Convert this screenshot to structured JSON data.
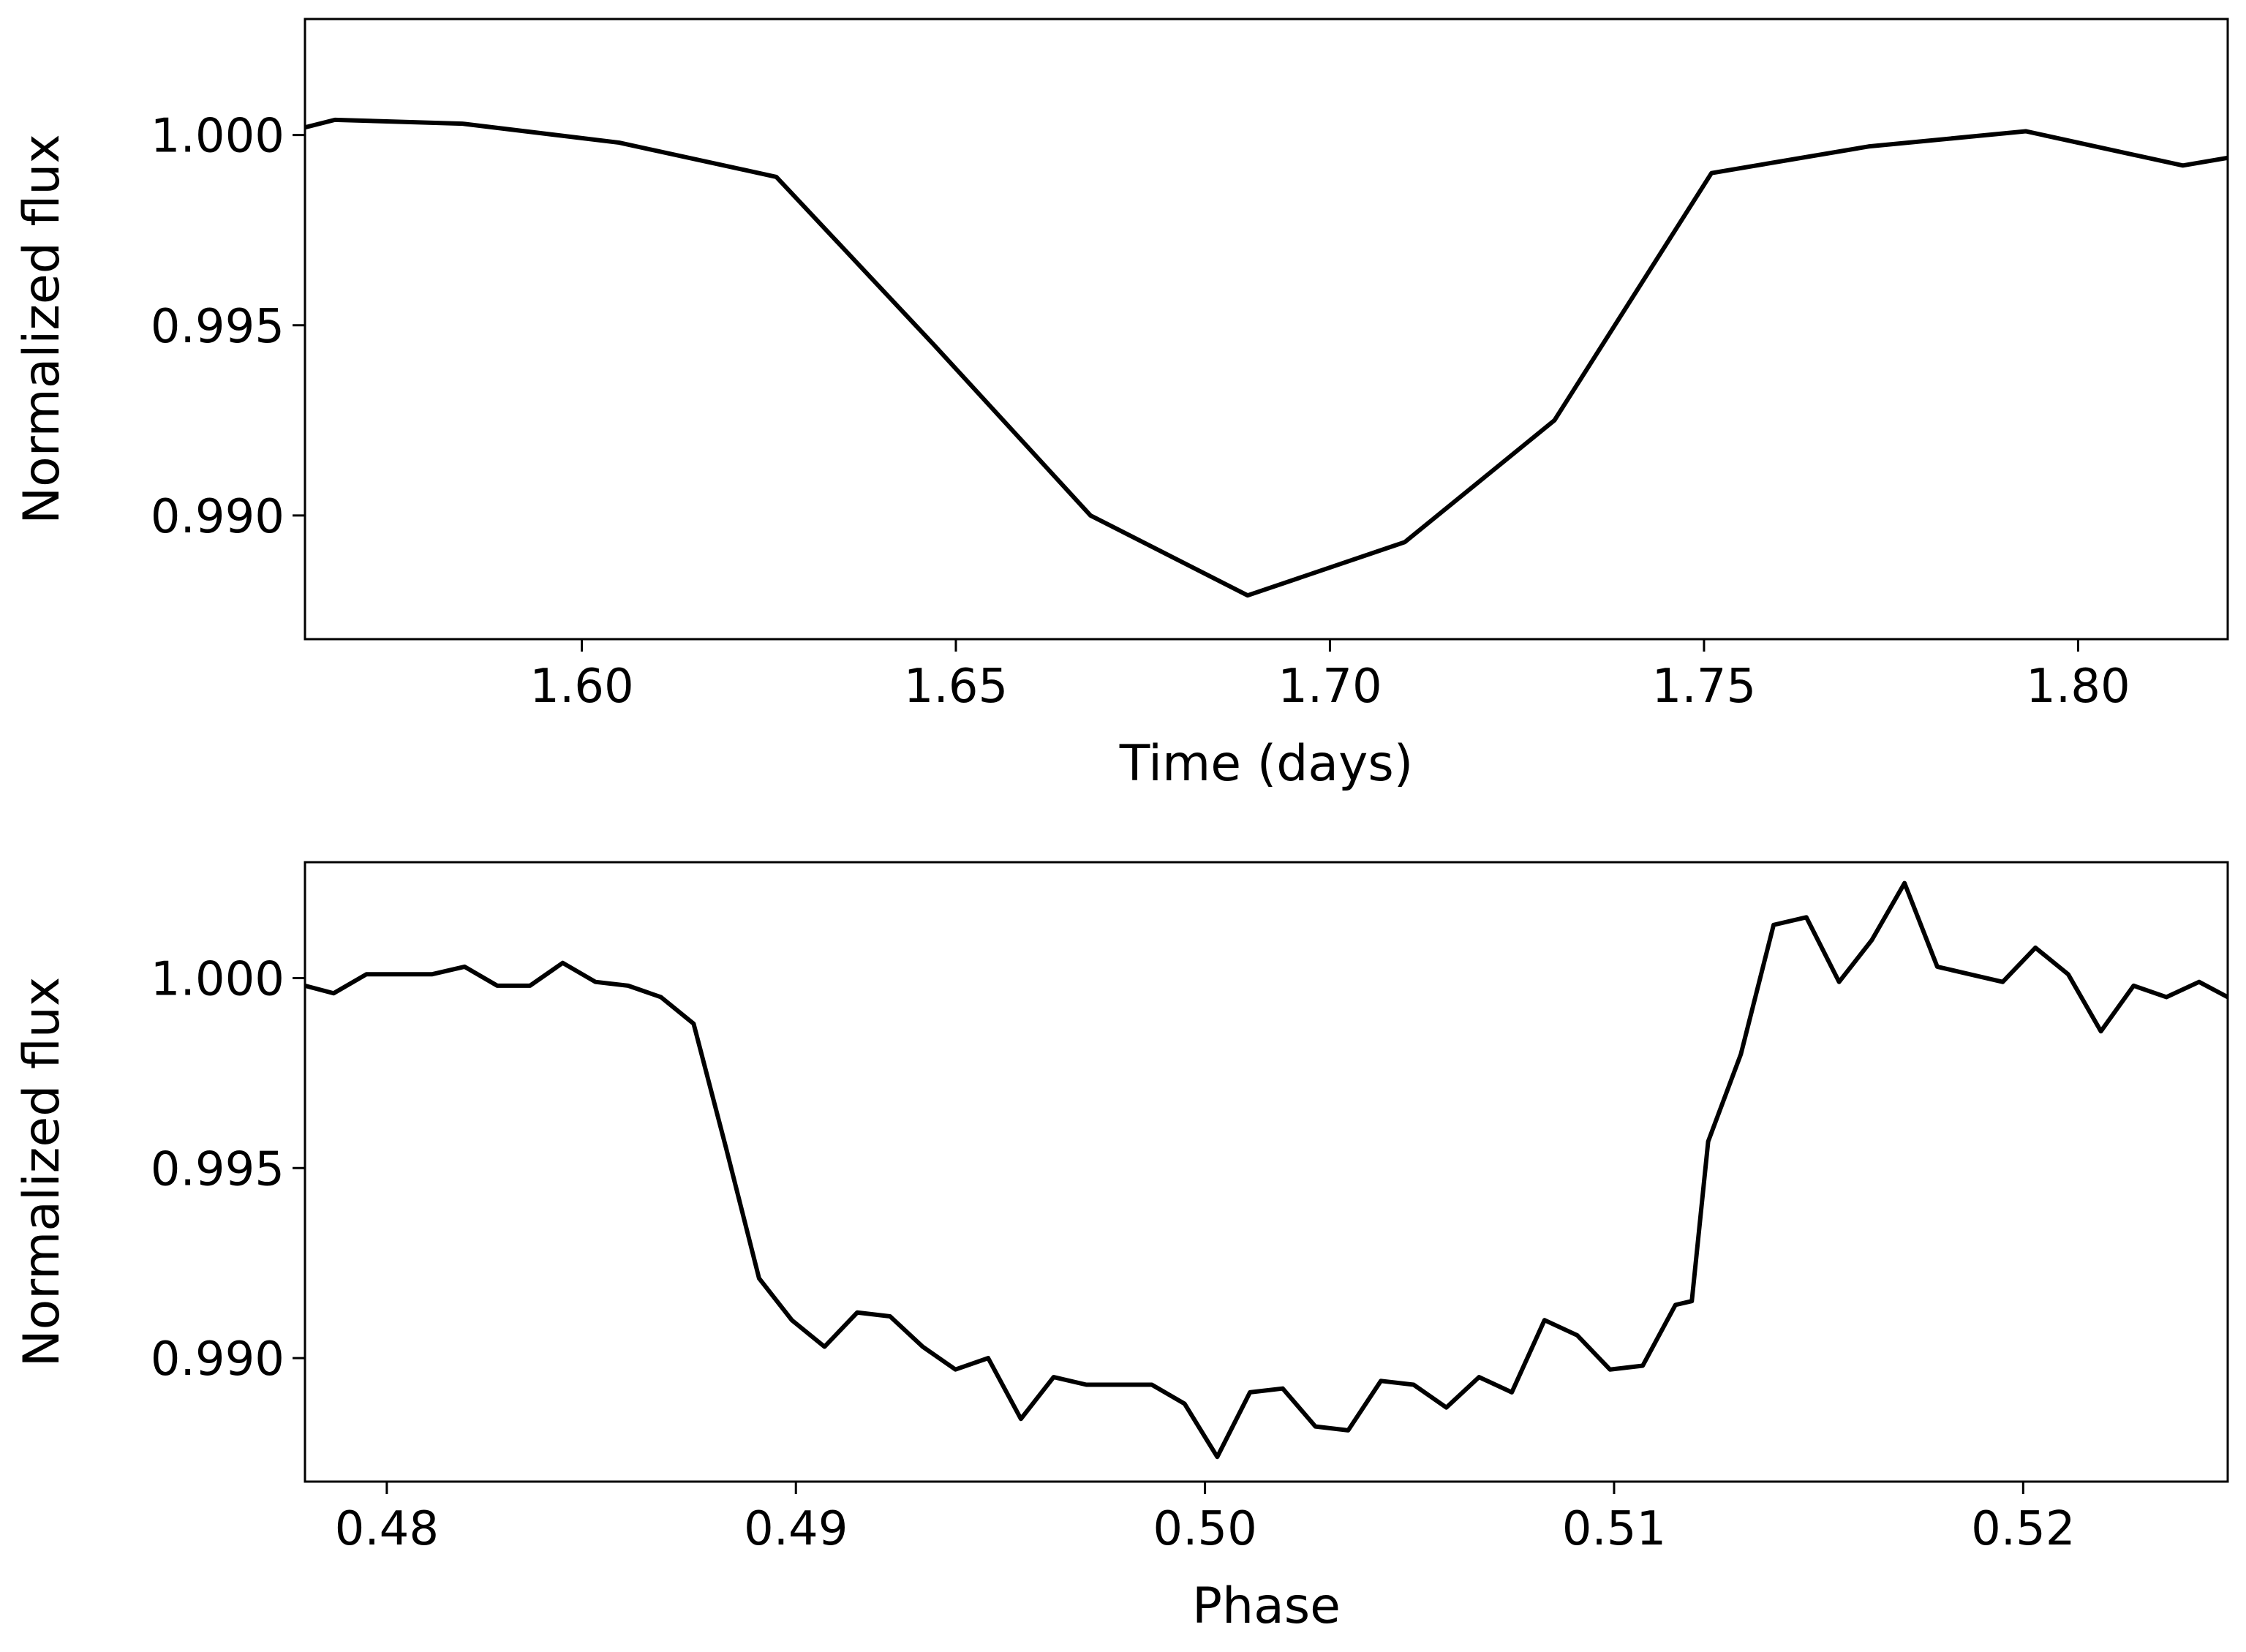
{
  "chart_data": [
    {
      "type": "line",
      "xlabel": "Time (days)",
      "ylabel": "Normalized flux",
      "xlim": [
        1.563,
        1.82
      ],
      "ylim": [
        0.98675,
        1.00305
      ],
      "x_ticks": [
        1.6,
        1.65,
        1.7,
        1.75,
        1.8
      ],
      "x_tick_labels": [
        "1.60",
        "1.65",
        "1.70",
        "1.75",
        "1.80"
      ],
      "y_ticks": [
        0.99,
        0.995,
        1.0
      ],
      "y_tick_labels": [
        "0.990",
        "0.995",
        "1.000"
      ],
      "grid": false,
      "line_color": "#000000",
      "series": [
        {
          "x": [
            1.563,
            1.567,
            1.584,
            1.605,
            1.626,
            1.647,
            1.668,
            1.689,
            1.71,
            1.73,
            1.751,
            1.772,
            1.793,
            1.814,
            1.82
          ],
          "y": [
            1.0002,
            1.0004,
            1.0003,
            0.9998,
            0.9989,
            0.9945,
            0.99,
            0.9879,
            0.9893,
            0.9925,
            0.999,
            0.9997,
            1.0001,
            0.9992,
            0.9994
          ]
        }
      ]
    },
    {
      "type": "line",
      "xlabel": "Phase",
      "ylabel": "Normalized flux",
      "xlim": [
        0.478,
        0.525
      ],
      "ylim": [
        0.98675,
        1.00305
      ],
      "x_ticks": [
        0.48,
        0.49,
        0.5,
        0.51,
        0.52
      ],
      "x_tick_labels": [
        "0.48",
        "0.49",
        "0.50",
        "0.51",
        "0.52"
      ],
      "y_ticks": [
        0.99,
        0.995,
        1.0
      ],
      "y_tick_labels": [
        "0.990",
        "0.995",
        "1.000"
      ],
      "grid": false,
      "line_color": "#000000",
      "series": [
        {
          "x": [
            0.478,
            0.4787,
            0.4795,
            0.4803,
            0.4811,
            0.4819,
            0.4827,
            0.4835,
            0.4843,
            0.4851,
            0.4859,
            0.4867,
            0.4875,
            0.4883,
            0.4891,
            0.4899,
            0.4907,
            0.4915,
            0.4923,
            0.4931,
            0.4939,
            0.4947,
            0.4955,
            0.4963,
            0.4971,
            0.4979,
            0.4987,
            0.4995,
            0.5003,
            0.5011,
            0.5019,
            0.5027,
            0.5035,
            0.5043,
            0.5051,
            0.5059,
            0.5067,
            0.5075,
            0.5083,
            0.5091,
            0.5099,
            0.5107,
            0.5115,
            0.5119,
            0.5123,
            0.5131,
            0.5139,
            0.5147,
            0.5155,
            0.5163,
            0.5171,
            0.5179,
            0.5187,
            0.5195,
            0.5203,
            0.5211,
            0.5219,
            0.5227,
            0.5235,
            0.5243,
            0.525
          ],
          "y": [
            0.9998,
            0.9996,
            1.0001,
            1.0001,
            1.0001,
            1.0003,
            0.9998,
            0.9998,
            1.0004,
            0.9999,
            0.9998,
            0.9995,
            0.9988,
            0.9955,
            0.9921,
            0.991,
            0.9903,
            0.9912,
            0.9911,
            0.9903,
            0.9897,
            0.99,
            0.9884,
            0.9895,
            0.9893,
            0.9893,
            0.9893,
            0.9888,
            0.9874,
            0.9891,
            0.9892,
            0.9882,
            0.9881,
            0.9894,
            0.9893,
            0.9887,
            0.9895,
            0.9891,
            0.991,
            0.9906,
            0.9897,
            0.9898,
            0.9914,
            0.9915,
            0.9957,
            0.998,
            1.0014,
            1.0016,
            0.9999,
            1.001,
            1.0025,
            1.0003,
            1.0001,
            0.9999,
            1.0008,
            1.0001,
            0.9986,
            0.9998,
            0.9995,
            0.9999,
            0.9995
          ]
        }
      ]
    }
  ]
}
